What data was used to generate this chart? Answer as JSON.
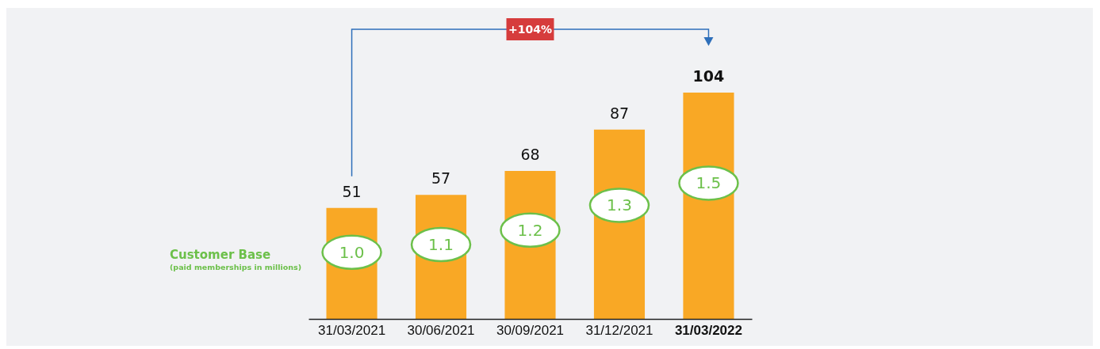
{
  "chart_data": {
    "type": "bar",
    "categories": [
      "31/03/2021",
      "30/06/2021",
      "30/09/2021",
      "31/12/2021",
      "31/03/2022"
    ],
    "values": [
      51,
      57,
      68,
      87,
      104
    ],
    "color": "#f9a825",
    "data_labels": true,
    "annotations": [
      "1.0",
      "1.1",
      "1.2",
      "1.3",
      "1.5",
      "Customer Base",
      "(paid memberships in millions)",
      "+104%"
    ]
  }
}
